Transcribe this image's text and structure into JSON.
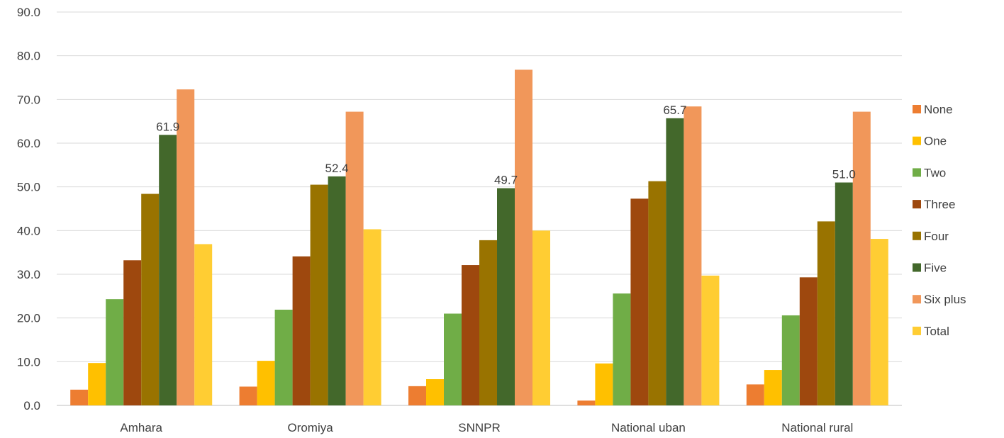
{
  "chart_data": {
    "type": "bar",
    "title": "",
    "xlabel": "",
    "ylabel": "",
    "ylim": [
      0,
      90
    ],
    "yticks": [
      "0.0",
      "10.0",
      "20.0",
      "30.0",
      "40.0",
      "50.0",
      "60.0",
      "70.0",
      "80.0",
      "90.0"
    ],
    "grid": true,
    "legend_position": "right",
    "categories": [
      "Amhara",
      "Oromiya",
      "SNNPR",
      "National uban",
      "National rural"
    ],
    "series": [
      {
        "name": "None",
        "color": "#ED7D31",
        "values": [
          3.6,
          4.3,
          4.4,
          1.1,
          4.8
        ]
      },
      {
        "name": "One",
        "color": "#FFC000",
        "values": [
          9.7,
          10.2,
          6.0,
          9.6,
          8.1
        ]
      },
      {
        "name": "Two",
        "color": "#70AD47",
        "values": [
          24.3,
          21.9,
          21.0,
          25.6,
          20.6
        ]
      },
      {
        "name": "Three",
        "color": "#9E480E",
        "values": [
          33.2,
          34.1,
          32.1,
          47.3,
          29.3
        ]
      },
      {
        "name": "Four",
        "color": "#997300",
        "values": [
          48.4,
          50.5,
          37.8,
          51.3,
          42.1
        ]
      },
      {
        "name": "Five",
        "color": "#43682B",
        "values": [
          61.9,
          52.4,
          49.7,
          65.7,
          51.0
        ],
        "data_labels": [
          "61.9",
          "52.4",
          "49.7",
          "65.7",
          "51.0"
        ]
      },
      {
        "name": "Six plus",
        "color": "#F1975A",
        "values": [
          72.3,
          67.2,
          76.8,
          68.4,
          67.2
        ]
      },
      {
        "name": "Total",
        "color": "#FFCD33",
        "values": [
          36.9,
          40.3,
          40.0,
          29.7,
          38.1
        ]
      }
    ]
  }
}
